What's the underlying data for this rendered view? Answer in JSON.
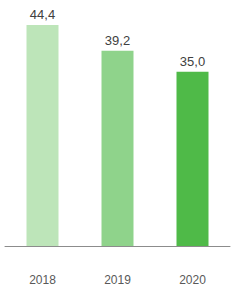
{
  "chart_data": {
    "type": "bar",
    "categories": [
      "2018",
      "2019",
      "2020"
    ],
    "values": [
      44.4,
      39.2,
      35.0
    ],
    "value_labels": [
      "44,4",
      "39,2",
      "35,0"
    ],
    "colors": [
      "#bde5b9",
      "#8fd38b",
      "#4fba48"
    ],
    "ylim": [
      0,
      45
    ],
    "grid": false,
    "data_labels": true,
    "tick_labels": "x"
  }
}
